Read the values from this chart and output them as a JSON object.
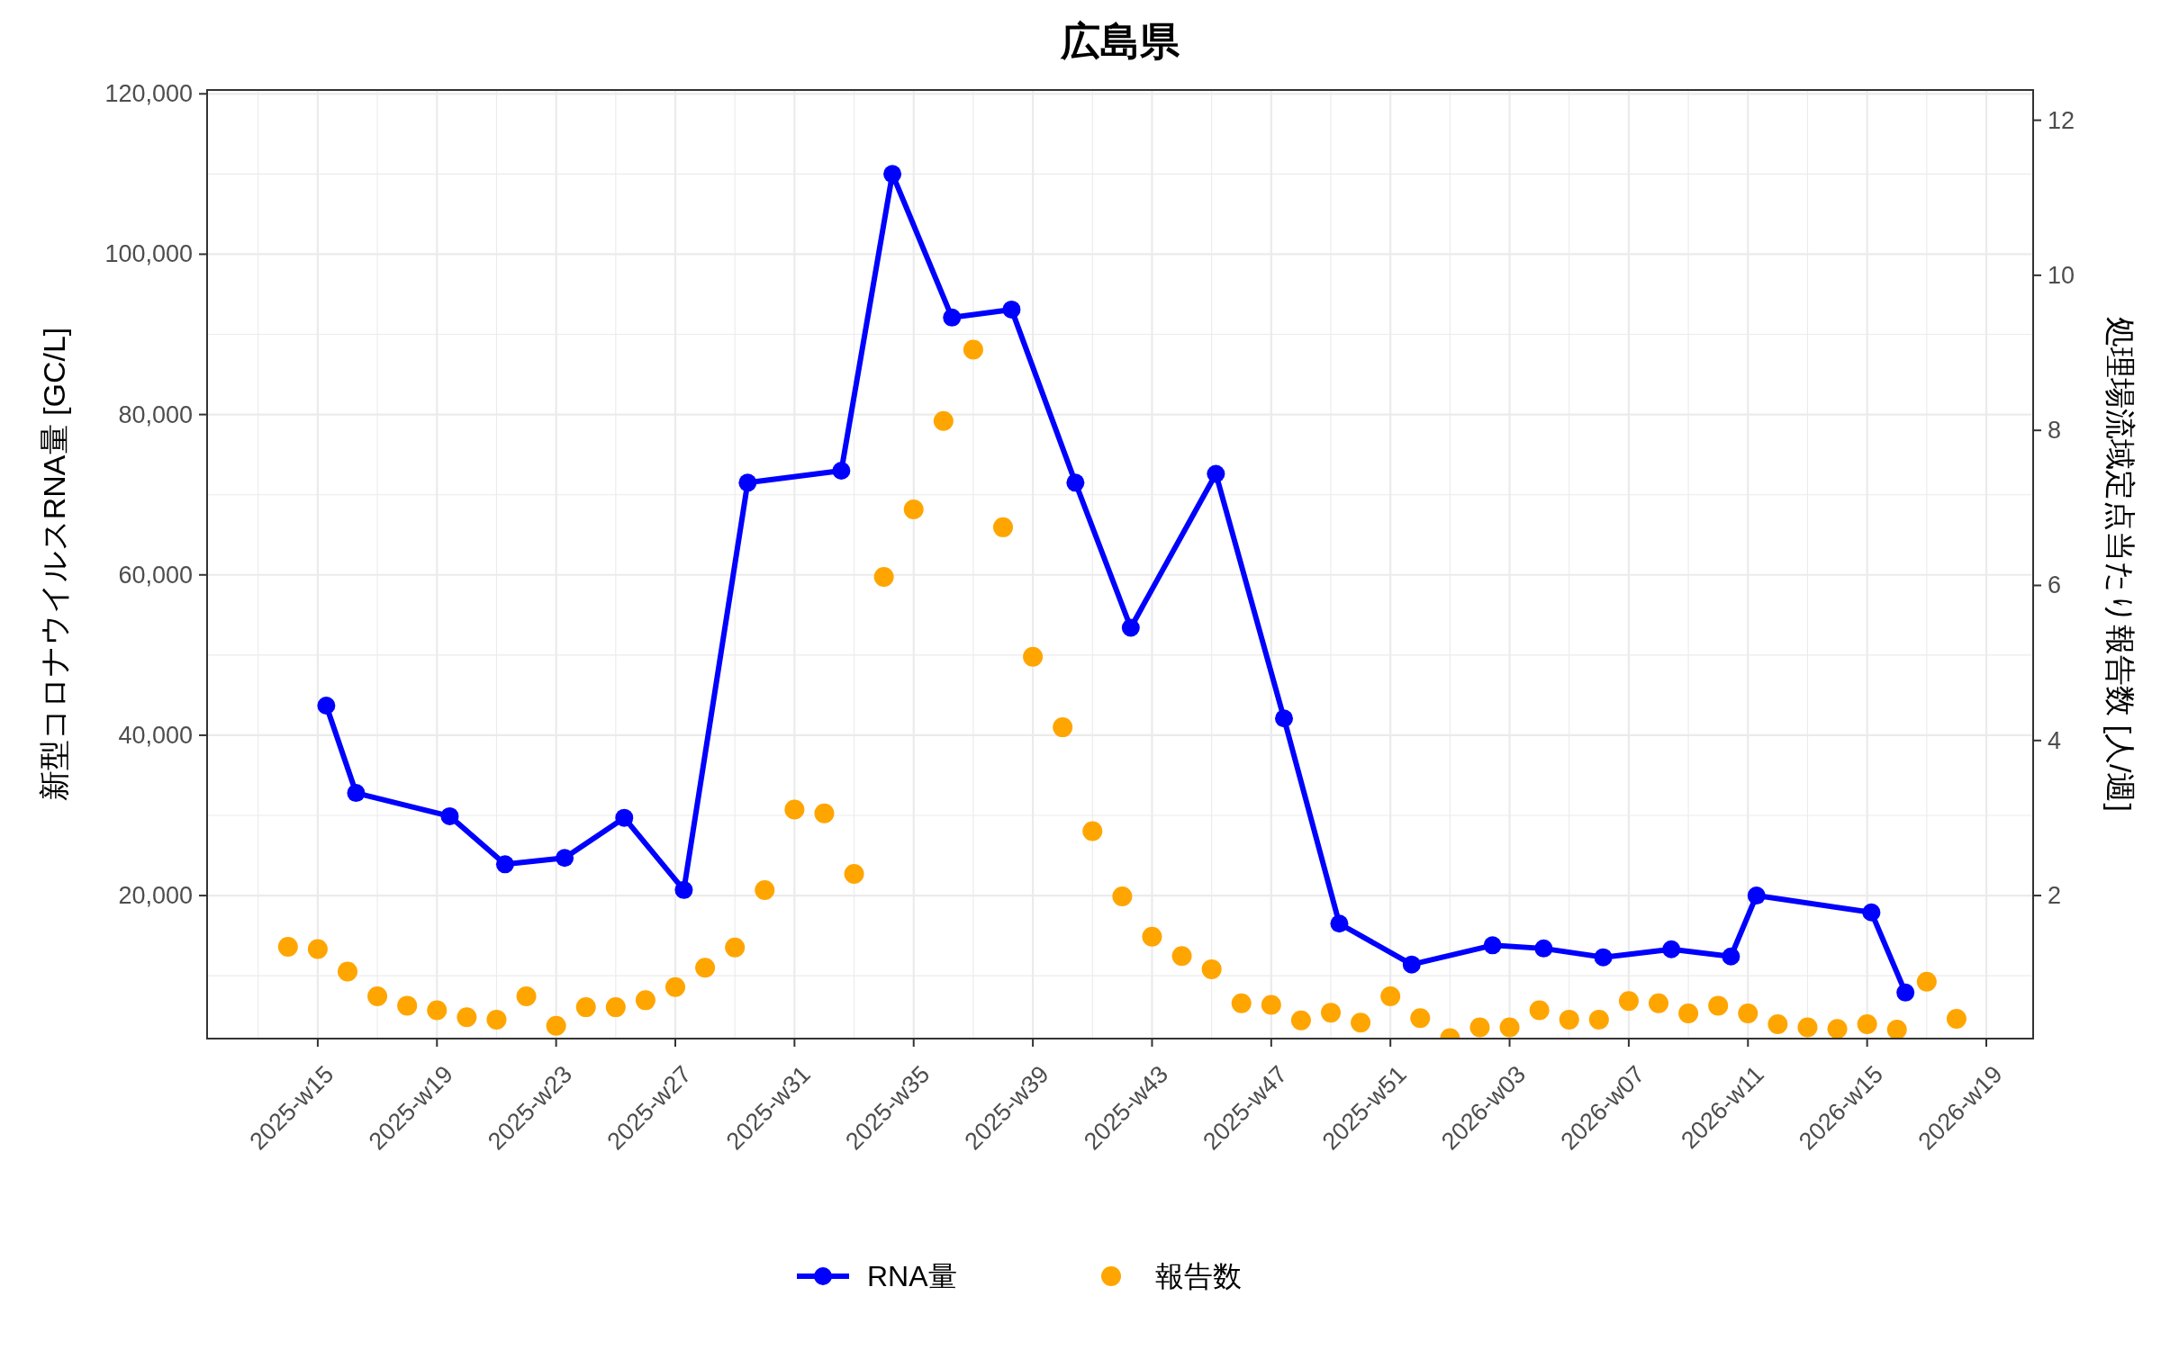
{
  "chart_data": {
    "type": "line",
    "title": "広島県",
    "ylabel": "新型コロナウイルスRNA量 [GC/L]",
    "y2label": "処理場流域定点当たり報告数 [人/週]",
    "xlim": [
      "2025-03-12",
      "2026-05-15"
    ],
    "ylim": [
      2160,
      120480
    ],
    "y2lim": [
      0.155,
      12.39
    ],
    "xticks": [
      {
        "value": "2025-04-07",
        "label": "2025-w15"
      },
      {
        "value": "2025-05-05",
        "label": "2025-w19"
      },
      {
        "value": "2025-06-02",
        "label": "2025-w23"
      },
      {
        "value": "2025-06-30",
        "label": "2025-w27"
      },
      {
        "value": "2025-07-28",
        "label": "2025-w31"
      },
      {
        "value": "2025-08-25",
        "label": "2025-w35"
      },
      {
        "value": "2025-09-22",
        "label": "2025-w39"
      },
      {
        "value": "2025-10-20",
        "label": "2025-w43"
      },
      {
        "value": "2025-11-17",
        "label": "2025-w47"
      },
      {
        "value": "2025-12-15",
        "label": "2025-w51"
      },
      {
        "value": "2026-01-12",
        "label": "2026-w03"
      },
      {
        "value": "2026-02-09",
        "label": "2026-w07"
      },
      {
        "value": "2026-03-09",
        "label": "2026-w11"
      },
      {
        "value": "2026-04-06",
        "label": "2026-w15"
      },
      {
        "value": "2026-05-04",
        "label": "2026-w19"
      }
    ],
    "yticks": [
      {
        "value": 20000,
        "label": "20,000"
      },
      {
        "value": 40000,
        "label": "40,000"
      },
      {
        "value": 60000,
        "label": "60,000"
      },
      {
        "value": 80000,
        "label": "80,000"
      },
      {
        "value": 100000,
        "label": "100,000"
      },
      {
        "value": 120000,
        "label": "120,000"
      }
    ],
    "y2ticks": [
      2,
      4,
      6,
      8,
      10,
      12
    ],
    "grid": true,
    "legend": "bottom",
    "marker": "circle",
    "series": [
      {
        "name": "RNA量",
        "color": "#0000ff",
        "x": [
          "2025-04-09",
          "2025-04-16",
          "2025-05-08",
          "2025-05-21",
          "2025-06-04",
          "2025-06-18",
          "2025-07-02",
          "2025-07-17",
          "2025-08-08",
          "2025-08-20",
          "2025-09-03",
          "2025-09-17",
          "2025-10-02",
          "2025-10-15",
          "2025-11-04",
          "2025-11-20",
          "2025-12-03",
          "2025-12-20",
          "2026-01-08",
          "2026-01-20",
          "2026-02-03",
          "2026-02-19",
          "2026-03-05",
          "2026-03-11",
          "2026-04-07",
          "2026-04-15"
        ],
        "values": [
          43700,
          32800,
          29900,
          23900,
          24700,
          29700,
          20700,
          71500,
          73000,
          110000,
          92100,
          93100,
          71500,
          53400,
          72600,
          42100,
          16500,
          11400,
          13800,
          13400,
          12300,
          13300,
          12400,
          20000,
          17900,
          7900
        ]
      },
      {
        "name": "報告数",
        "type": "scatter",
        "axis": "y2",
        "color": "#ffa500",
        "x": [
          "2025-03-31",
          "2025-04-07",
          "2025-04-14",
          "2025-04-21",
          "2025-04-28",
          "2025-05-05",
          "2025-05-12",
          "2025-05-19",
          "2025-05-26",
          "2025-06-02",
          "2025-06-09",
          "2025-06-16",
          "2025-06-23",
          "2025-06-30",
          "2025-07-07",
          "2025-07-14",
          "2025-07-21",
          "2025-07-28",
          "2025-08-04",
          "2025-08-11",
          "2025-08-18",
          "2025-08-25",
          "2025-09-01",
          "2025-09-08",
          "2025-09-15",
          "2025-09-22",
          "2025-09-29",
          "2025-10-06",
          "2025-10-13",
          "2025-10-20",
          "2025-10-27",
          "2025-11-03",
          "2025-11-10",
          "2025-11-17",
          "2025-11-24",
          "2025-12-01",
          "2025-12-08",
          "2025-12-15",
          "2025-12-22",
          "2025-12-29",
          "2026-01-05",
          "2026-01-12",
          "2026-01-19",
          "2026-01-26",
          "2026-02-02",
          "2026-02-09",
          "2026-02-16",
          "2026-02-23",
          "2026-03-02",
          "2026-03-09",
          "2026-03-16",
          "2026-03-23",
          "2026-03-30",
          "2026-04-06",
          "2026-04-13",
          "2026-04-20",
          "2026-04-27"
        ],
        "values": [
          1.34,
          1.31,
          1.02,
          0.7,
          0.58,
          0.52,
          0.43,
          0.4,
          0.7,
          0.32,
          0.56,
          0.56,
          0.65,
          0.82,
          1.07,
          1.33,
          2.07,
          3.11,
          3.06,
          2.28,
          6.11,
          6.98,
          8.12,
          9.04,
          6.75,
          5.08,
          4.17,
          2.83,
          1.99,
          1.47,
          1.22,
          1.05,
          0.61,
          0.59,
          0.39,
          0.49,
          0.36,
          0.7,
          0.42,
          0.16,
          0.3,
          0.3,
          0.52,
          0.4,
          0.4,
          0.64,
          0.61,
          0.48,
          0.58,
          0.48,
          0.34,
          0.3,
          0.28,
          0.34,
          0.27,
          0.89,
          0.41
        ]
      }
    ]
  }
}
